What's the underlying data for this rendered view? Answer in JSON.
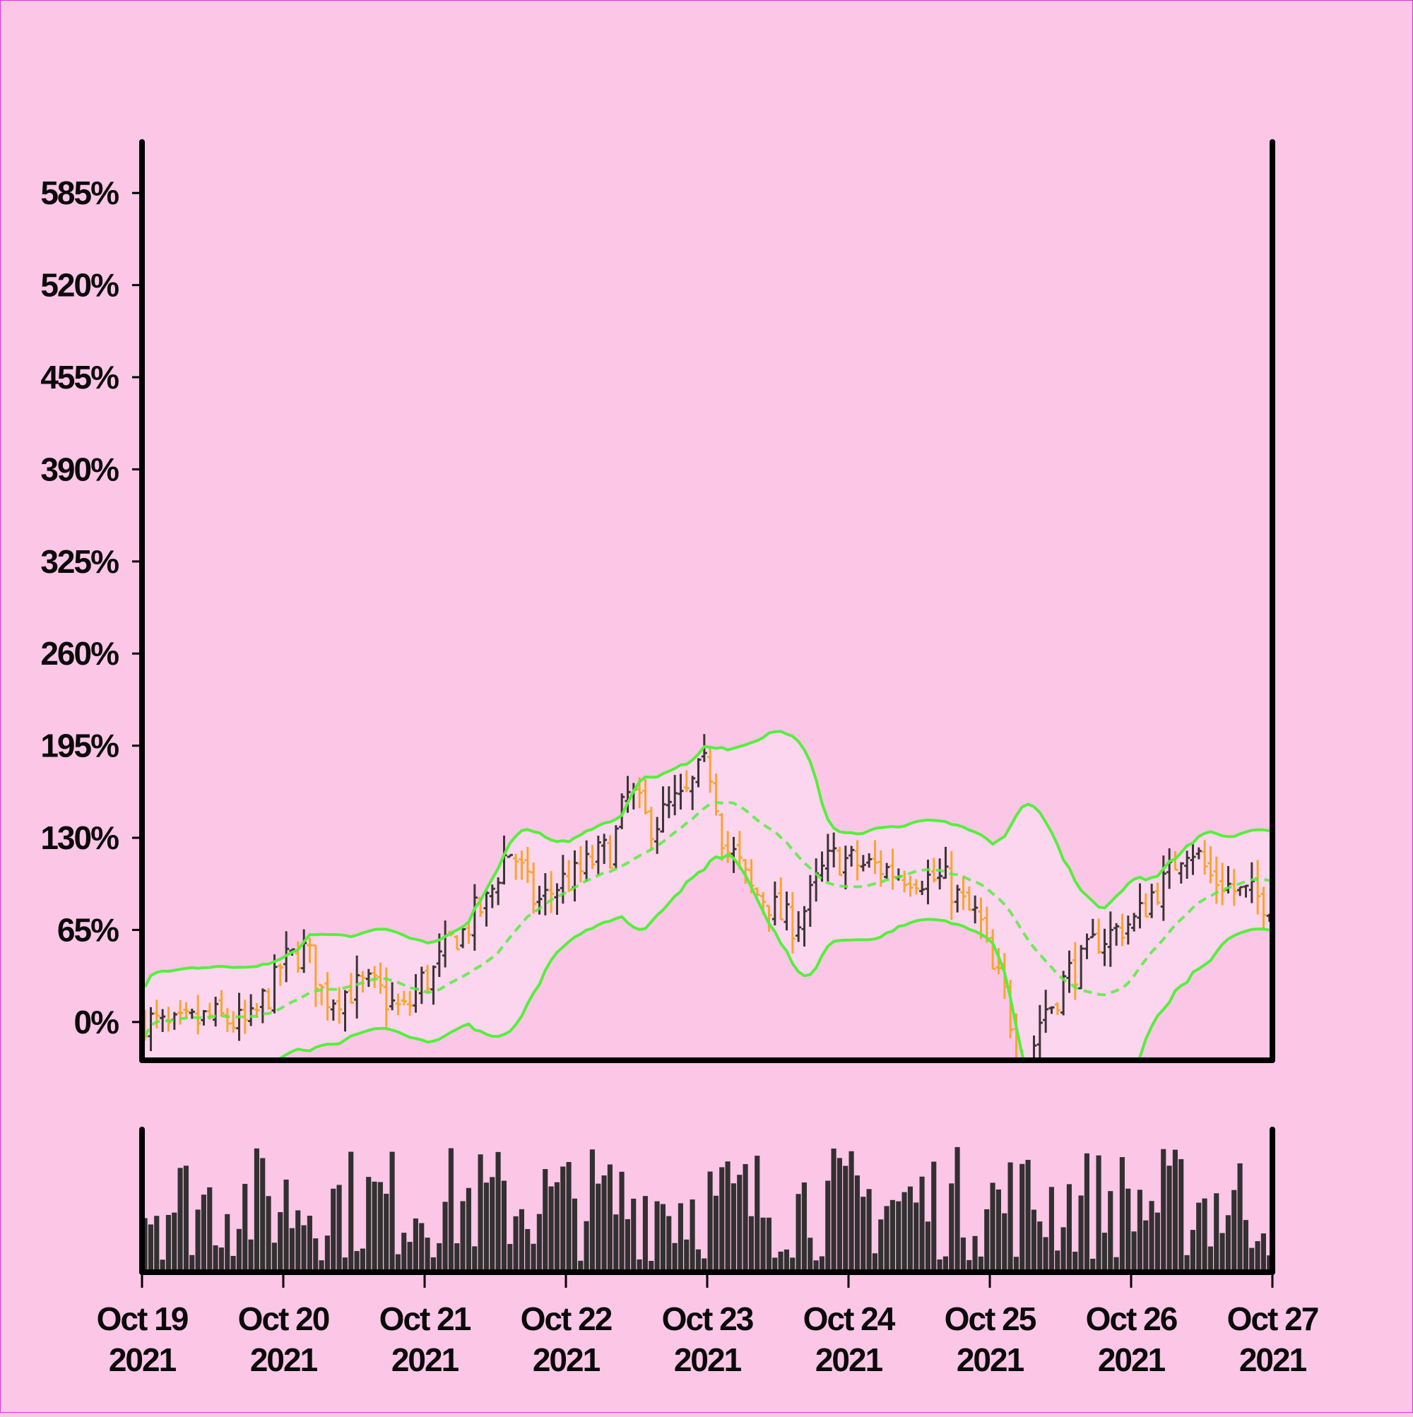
{
  "colors": {
    "background": "#fcc6e7",
    "border": "#d23ccf",
    "up": "#3c3436",
    "down": "#f6a630",
    "band": "#55ef3c",
    "band_fill": "#fcd6ee",
    "axis": "#000000",
    "volume": "#333031"
  },
  "chart_data": {
    "type": "ohlc",
    "indicator": "bollinger-bands",
    "x_start": "2021-10-19",
    "x_end": "2021-10-27",
    "x_ticks": [
      {
        "date": "2021-10-19",
        "label_line1": "Oct 19",
        "label_line2": "2021"
      },
      {
        "date": "2021-10-20",
        "label_line1": "Oct 20",
        "label_line2": "2021"
      },
      {
        "date": "2021-10-21",
        "label_line1": "Oct 21",
        "label_line2": "2021"
      },
      {
        "date": "2021-10-22",
        "label_line1": "Oct 22",
        "label_line2": "2021"
      },
      {
        "date": "2021-10-23",
        "label_line1": "Oct 23",
        "label_line2": "2021"
      },
      {
        "date": "2021-10-24",
        "label_line1": "Oct 24",
        "label_line2": "2021"
      },
      {
        "date": "2021-10-25",
        "label_line1": "Oct 25",
        "label_line2": "2021"
      },
      {
        "date": "2021-10-26",
        "label_line1": "Oct 26",
        "label_line2": "2021"
      },
      {
        "date": "2021-10-27",
        "label_line1": "Oct 27",
        "label_line2": "2021"
      }
    ],
    "y_ticks": [
      {
        "value": 0,
        "label": "0%"
      },
      {
        "value": 65,
        "label": "65%"
      },
      {
        "value": 130,
        "label": "130%"
      },
      {
        "value": 195,
        "label": "195%"
      },
      {
        "value": 260,
        "label": "260%"
      },
      {
        "value": 325,
        "label": "325%"
      },
      {
        "value": 390,
        "label": "390%"
      },
      {
        "value": 455,
        "label": "455%"
      },
      {
        "value": 520,
        "label": "520%"
      },
      {
        "value": 585,
        "label": "585%"
      }
    ],
    "ylim": [
      -27,
      621
    ],
    "price_anchors": [
      [
        0.0,
        2
      ],
      [
        0.2,
        -5
      ],
      [
        0.5,
        3
      ],
      [
        0.75,
        -2
      ],
      [
        0.9,
        20
      ],
      [
        1.0,
        42
      ],
      [
        1.15,
        50
      ],
      [
        1.3,
        18
      ],
      [
        1.6,
        25
      ],
      [
        1.85,
        8
      ],
      [
        2.0,
        30
      ],
      [
        2.25,
        62
      ],
      [
        2.4,
        80
      ],
      [
        2.6,
        120
      ],
      [
        2.8,
        85
      ],
      [
        3.0,
        100
      ],
      [
        3.3,
        120
      ],
      [
        3.45,
        160
      ],
      [
        3.6,
        140
      ],
      [
        3.8,
        155
      ],
      [
        4.0,
        180
      ],
      [
        4.15,
        120
      ],
      [
        4.35,
        90
      ],
      [
        4.6,
        70
      ],
      [
        4.9,
        115
      ],
      [
        5.15,
        110
      ],
      [
        5.4,
        105
      ],
      [
        5.65,
        100
      ],
      [
        5.9,
        75
      ],
      [
        6.05,
        30
      ],
      [
        6.25,
        -30
      ],
      [
        6.4,
        10
      ],
      [
        6.6,
        38
      ],
      [
        6.8,
        60
      ],
      [
        7.0,
        70
      ],
      [
        7.2,
        95
      ],
      [
        7.4,
        125
      ],
      [
        7.6,
        100
      ],
      [
        7.8,
        90
      ],
      [
        8.0,
        85
      ]
    ],
    "bars_per_day": 24,
    "bollinger_window": 20,
    "bollinger_std": 2,
    "volume_range": [
      0,
      100
    ]
  }
}
